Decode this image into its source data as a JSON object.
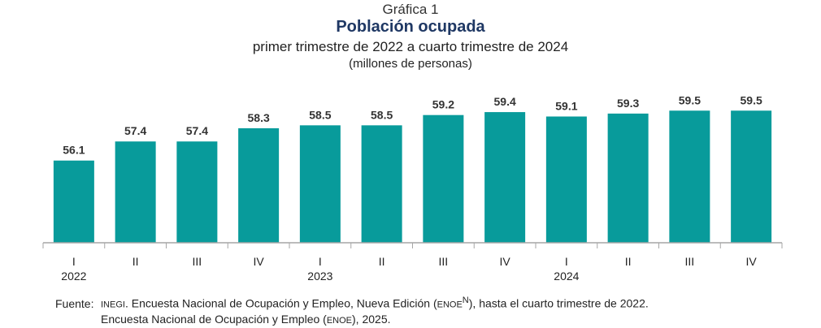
{
  "header": {
    "label": "Gráfica 1",
    "title": "Población ocupada",
    "subtitle": "primer trimestre de 2022 a cuarto trimestre de 2024",
    "unit": "(millones de personas)"
  },
  "chart_data": {
    "type": "bar",
    "categories": [
      "I",
      "II",
      "III",
      "IV",
      "I",
      "II",
      "III",
      "IV",
      "I",
      "II",
      "III",
      "IV"
    ],
    "years": [
      {
        "label": "2022",
        "index": 0
      },
      {
        "label": "2023",
        "index": 4
      },
      {
        "label": "2024",
        "index": 8
      }
    ],
    "values": [
      56.1,
      57.4,
      57.4,
      58.3,
      58.5,
      58.5,
      59.2,
      59.4,
      59.1,
      59.3,
      59.5,
      59.5
    ],
    "value_labels": [
      "56.1",
      "57.4",
      "57.4",
      "58.3",
      "58.5",
      "58.5",
      "59.2",
      "59.4",
      "59.1",
      "59.3",
      "59.5",
      "59.5"
    ],
    "ylim": [
      50.5,
      60.4
    ],
    "grid": false,
    "bar_color": "#089b9b",
    "axis_color": "#a6a6a6"
  },
  "source": {
    "label": "Fuente:",
    "inegi": "INEGI",
    "line1_text": ". Encuesta Nacional de Ocupación y Empleo, Nueva Edición (",
    "enoe": "ENOE",
    "sup": "N",
    "line1_end": "), hasta el cuarto trimestre de 2022.",
    "line2_text": "Encuesta Nacional de Ocupación y Empleo (",
    "enoe2": "ENOE",
    "line2_end": "), 2025."
  }
}
